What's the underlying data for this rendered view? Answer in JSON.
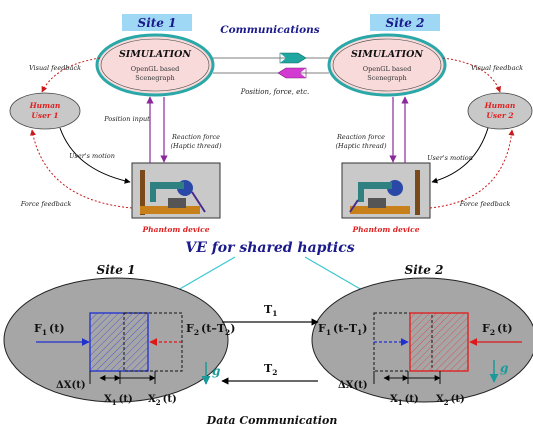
{
  "top": {
    "site1_label": "Site 1",
    "site2_label": "Site 2",
    "communications": "Communications",
    "sim1_title": "SIMULATION",
    "sim1_sub1": "OpenGL based",
    "sim1_sub2": "Scenegraph",
    "sim2_title": "SIMULATION",
    "sim2_sub1": "OpenGL based",
    "sim2_sub2": "Scenegraph",
    "position_force": "Position, force, etc.",
    "visual_feedback_left": "Visual feedback",
    "visual_feedback_right": "Visual feedback",
    "human1_line1": "Human",
    "human1_line2": "User 1",
    "human2_line1": "Human",
    "human2_line2": "User 2",
    "position_input": "Position input",
    "reaction_force_left_1": "Reaction force",
    "reaction_force_left_2": "(Haptic thread)",
    "reaction_force_right_1": "Reaction force",
    "reaction_force_right_2": "(Haptic thread)",
    "users_motion_left": "User's motion",
    "users_motion_right": "User's motion",
    "force_feedback_left": "Force feedback",
    "force_feedback_right": "Force feedback",
    "phantom_left": "Phantom device",
    "phantom_right": "Phantom device"
  },
  "middle": {
    "title": "VE for shared haptics"
  },
  "bottom": {
    "site1_label": "Site 1",
    "site2_label": "Site 2",
    "t1_label": "T",
    "t1_sub": "1",
    "t2_label": "T",
    "t2_sub": "2",
    "left_f1": "F",
    "left_f1_sub": "1",
    "left_f1_arg": "(t)",
    "left_f2": "F",
    "left_f2_sub": "2",
    "left_f2_arg_a": "(t–T",
    "left_f2_arg_sub": "2",
    "left_f2_arg_b": ")",
    "right_f1": "F",
    "right_f1_sub": "1",
    "right_f1_arg_a": "(t–T",
    "right_f1_arg_sub": "1",
    "right_f1_arg_b": ")",
    "right_f2": "F",
    "right_f2_sub": "2",
    "right_f2_arg": "(t)",
    "delta_x_left": "ΔX(t)",
    "delta_x_right": "ΔX(t)",
    "x1_left": "X",
    "x1_left_sub": "1",
    "x1_left_arg": "(t)",
    "x2_left": "X",
    "x2_left_sub": "2",
    "x2_left_arg": "(t)",
    "x1_right": "X",
    "x1_right_sub": "1",
    "x1_right_arg": "(t)",
    "x2_right": "X",
    "x2_right_sub": "2",
    "x2_right_arg": "(t)",
    "g_left": "g",
    "g_right": "g",
    "caption": "Data Communication"
  },
  "colors": {
    "site_tag_fill": "#9fd8f5",
    "sim_fill": "#f8dada",
    "sim_ring": "#2aa7a7",
    "human_fill": "#c8c8c8",
    "red_text": "#e02020",
    "navy_text": "#1a1a8c",
    "purple_arrow": "#8a2a9a",
    "cyan_line": "#39c7d1",
    "gray_ellipse": "#a6a6a6",
    "blue_box": "#1f2fd0",
    "red_box": "#e01818",
    "teal_g": "#1a9a9a"
  }
}
